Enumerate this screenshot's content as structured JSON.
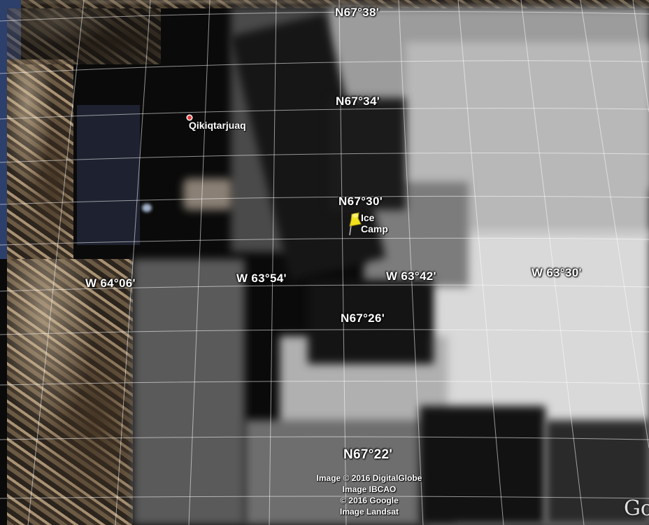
{
  "map": {
    "latitude_labels": [
      "N67°38'",
      "N67°34'",
      "N67°30'",
      "N67°26'",
      "N67°22'"
    ],
    "longitude_labels": [
      "W 64°06'",
      "W 63°54'",
      "W 63°42'",
      "W 63°30'"
    ],
    "places": [
      {
        "name": "Qikiqtarjuaq",
        "icon": "red-dot-icon"
      },
      {
        "name": "Ice Camp",
        "icon": "yellow-pushpin-icon"
      }
    ],
    "attribution": [
      "Image © 2016 DigitalGlobe",
      "Image IBCAO",
      "© 2016 Google",
      "Image Landsat"
    ],
    "logo_text": "Go",
    "colors": {
      "pin": "#f2e21c",
      "place_dot": "#e23b3b",
      "grid": "#ffffff"
    }
  }
}
